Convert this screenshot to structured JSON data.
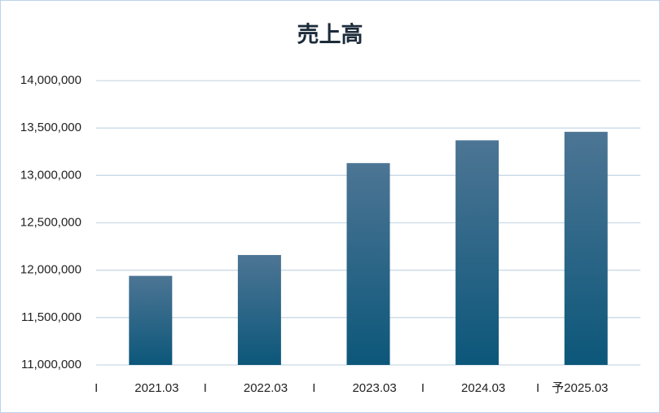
{
  "chart_data": {
    "type": "bar",
    "title": "売上高",
    "categories": [
      "I　　　2021.03",
      "I　　　2022.03",
      "I　　　2023.03",
      "I　　　2024.03",
      "I　予2025.03"
    ],
    "values": [
      11940000,
      12160000,
      13130000,
      13370000,
      13460000
    ],
    "color": "#0c577a",
    "ylim": [
      11000000,
      14000000
    ],
    "yticks": [
      {
        "value": 11000000,
        "label": "11,000,000"
      },
      {
        "value": 11500000,
        "label": "11,500,000"
      },
      {
        "value": 12000000,
        "label": "12,000,000"
      },
      {
        "value": 12500000,
        "label": "12,500,000"
      },
      {
        "value": 13000000,
        "label": "13,000,000"
      },
      {
        "value": 13500000,
        "label": "13,500,000"
      },
      {
        "value": 14000000,
        "label": "14,000,000"
      }
    ],
    "grid": true
  }
}
